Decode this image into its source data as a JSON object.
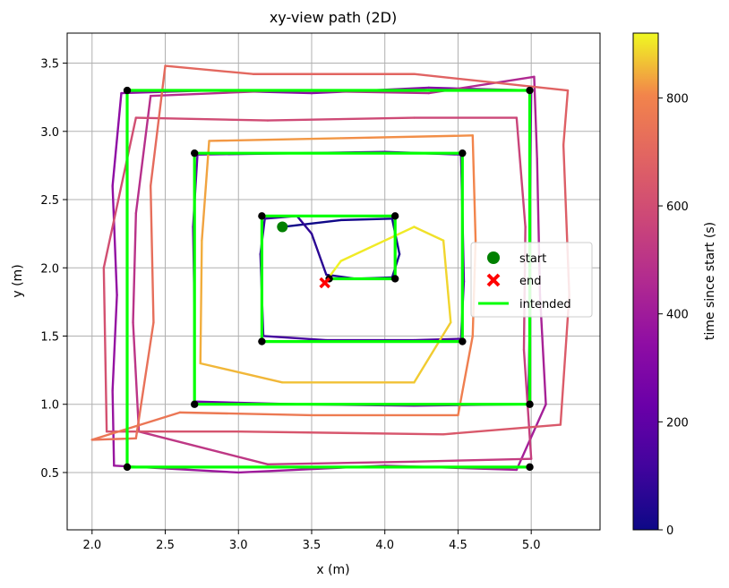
{
  "chart_data": {
    "type": "line",
    "title": "xy-view path (2D)",
    "xlabel": "x (m)",
    "ylabel": "y (m)",
    "xlim": [
      1.83,
      5.47
    ],
    "ylim": [
      0.08,
      3.72
    ],
    "xticks": [
      2.0,
      2.5,
      3.0,
      3.5,
      4.0,
      4.5,
      5.0
    ],
    "yticks": [
      0.5,
      1.0,
      1.5,
      2.0,
      2.5,
      3.0,
      3.5
    ],
    "xtick_labels": [
      "2.0",
      "2.5",
      "3.0",
      "3.5",
      "4.0",
      "4.5",
      "5.0"
    ],
    "ytick_labels": [
      "0.5",
      "1.0",
      "1.5",
      "2.0",
      "2.5",
      "3.0",
      "3.5"
    ],
    "grid": true,
    "legend_position": "center-right",
    "legend": [
      {
        "label": "start",
        "marker": "circle",
        "color": "#008000"
      },
      {
        "label": "end",
        "marker": "x",
        "color": "#ff0000"
      },
      {
        "label": "intended",
        "marker": "line",
        "color": "#00ff00"
      }
    ],
    "colorbar": {
      "label": "time since start (s)",
      "colormap": "plasma",
      "range": [
        0,
        920
      ],
      "ticks": [
        0,
        200,
        400,
        600,
        800
      ],
      "tick_labels": [
        "0",
        "200",
        "400",
        "600",
        "800"
      ]
    },
    "intended_path": {
      "name": "intended",
      "color": "#00ff00",
      "points": [
        [
          3.62,
          1.92
        ],
        [
          4.07,
          1.92
        ],
        [
          4.07,
          2.38
        ],
        [
          3.16,
          2.38
        ],
        [
          3.16,
          1.46
        ],
        [
          4.53,
          1.46
        ],
        [
          4.53,
          2.84
        ],
        [
          2.7,
          2.84
        ],
        [
          2.7,
          1.0
        ],
        [
          4.99,
          1.0
        ],
        [
          4.99,
          3.3
        ],
        [
          2.24,
          3.3
        ],
        [
          2.24,
          0.54
        ],
        [
          4.99,
          0.54
        ]
      ]
    },
    "waypoints": [
      [
        3.62,
        1.92
      ],
      [
        4.07,
        1.92
      ],
      [
        4.07,
        2.38
      ],
      [
        3.16,
        2.38
      ],
      [
        3.16,
        1.46
      ],
      [
        4.53,
        1.46
      ],
      [
        4.53,
        2.84
      ],
      [
        2.7,
        2.84
      ],
      [
        2.7,
        1.0
      ],
      [
        4.99,
        1.0
      ],
      [
        4.99,
        3.3
      ],
      [
        2.24,
        3.3
      ],
      [
        2.24,
        0.54
      ],
      [
        4.99,
        0.54
      ]
    ],
    "start_point": {
      "x": 3.3,
      "y": 2.3,
      "color": "#008000"
    },
    "end_point": {
      "x": 3.59,
      "y": 1.89,
      "color": "#ff0000"
    },
    "actual_path": {
      "time_range_s": [
        0,
        920
      ],
      "points": [
        [
          3.3,
          2.3,
          0
        ],
        [
          3.7,
          2.35,
          10
        ],
        [
          4.05,
          2.36,
          20
        ],
        [
          4.1,
          2.1,
          30
        ],
        [
          4.05,
          1.93,
          40
        ],
        [
          3.8,
          1.92,
          50
        ],
        [
          3.6,
          1.95,
          60
        ],
        [
          3.5,
          2.25,
          70
        ],
        [
          3.4,
          2.38,
          80
        ],
        [
          3.18,
          2.36,
          90
        ],
        [
          3.15,
          2.1,
          100
        ],
        [
          3.16,
          1.8,
          110
        ],
        [
          3.17,
          1.5,
          120
        ],
        [
          3.6,
          1.47,
          130
        ],
        [
          4.2,
          1.47,
          140
        ],
        [
          4.52,
          1.48,
          150
        ],
        [
          4.54,
          1.9,
          160
        ],
        [
          4.53,
          2.4,
          170
        ],
        [
          4.52,
          2.83,
          180
        ],
        [
          4.0,
          2.85,
          190
        ],
        [
          3.4,
          2.84,
          200
        ],
        [
          2.72,
          2.83,
          210
        ],
        [
          2.69,
          2.3,
          220
        ],
        [
          2.7,
          1.7,
          230
        ],
        [
          2.7,
          1.02,
          240
        ],
        [
          3.4,
          1.0,
          250
        ],
        [
          4.2,
          0.99,
          260
        ],
        [
          4.98,
          1.0,
          270
        ],
        [
          4.99,
          1.6,
          280
        ],
        [
          4.99,
          2.4,
          290
        ],
        [
          5.0,
          3.3,
          300
        ],
        [
          4.3,
          3.32,
          310
        ],
        [
          3.5,
          3.28,
          320
        ],
        [
          2.8,
          3.3,
          330
        ],
        [
          2.2,
          3.28,
          340
        ],
        [
          2.14,
          2.6,
          350
        ],
        [
          2.17,
          1.8,
          360
        ],
        [
          2.14,
          1.1,
          370
        ],
        [
          2.15,
          0.55,
          380
        ],
        [
          3.0,
          0.5,
          390
        ],
        [
          4.0,
          0.55,
          400
        ],
        [
          4.9,
          0.52,
          410
        ],
        [
          5.1,
          1.0,
          420
        ],
        [
          5.06,
          1.8,
          430
        ],
        [
          5.04,
          2.8,
          440
        ],
        [
          5.02,
          3.4,
          450
        ],
        [
          4.3,
          3.28,
          460
        ],
        [
          3.3,
          3.3,
          470
        ],
        [
          2.4,
          3.26,
          480
        ],
        [
          2.3,
          2.4,
          490
        ],
        [
          2.28,
          1.6,
          500
        ],
        [
          2.32,
          0.8,
          510
        ],
        [
          3.2,
          0.56,
          520
        ],
        [
          4.2,
          0.58,
          530
        ],
        [
          5.0,
          0.6,
          540
        ],
        [
          4.95,
          1.4,
          550
        ],
        [
          4.96,
          2.3,
          560
        ],
        [
          4.9,
          3.1,
          570
        ],
        [
          4.2,
          3.1,
          580
        ],
        [
          3.2,
          3.08,
          590
        ],
        [
          2.3,
          3.1,
          600
        ],
        [
          2.08,
          2.0,
          610
        ],
        [
          2.1,
          0.8,
          620
        ],
        [
          3.0,
          0.8,
          630
        ],
        [
          4.4,
          0.78,
          640
        ],
        [
          5.2,
          0.85,
          650
        ],
        [
          5.26,
          1.8,
          660
        ],
        [
          5.22,
          2.9,
          670
        ],
        [
          5.25,
          3.3,
          680
        ],
        [
          4.2,
          3.42,
          690
        ],
        [
          3.1,
          3.42,
          700
        ],
        [
          2.5,
          3.48,
          710
        ],
        [
          2.4,
          2.6,
          720
        ],
        [
          2.42,
          1.6,
          730
        ],
        [
          2.3,
          0.75,
          740
        ],
        [
          2.0,
          0.74,
          750
        ],
        [
          2.6,
          0.94,
          760
        ],
        [
          3.5,
          0.92,
          770
        ],
        [
          4.5,
          0.92,
          780
        ],
        [
          4.6,
          1.5,
          790
        ],
        [
          4.62,
          2.2,
          800
        ],
        [
          4.6,
          2.97,
          810
        ],
        [
          3.7,
          2.95,
          820
        ],
        [
          2.8,
          2.93,
          830
        ],
        [
          2.75,
          2.2,
          840
        ],
        [
          2.74,
          1.3,
          850
        ],
        [
          3.3,
          1.16,
          860
        ],
        [
          4.2,
          1.16,
          870
        ],
        [
          4.45,
          1.6,
          880
        ],
        [
          4.4,
          2.2,
          890
        ],
        [
          4.2,
          2.3,
          900
        ],
        [
          3.7,
          2.05,
          910
        ],
        [
          3.59,
          1.89,
          920
        ]
      ]
    }
  }
}
